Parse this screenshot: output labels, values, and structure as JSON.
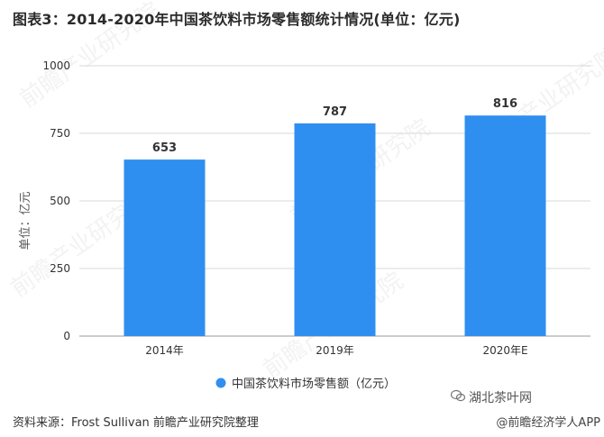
{
  "title": "图表3：2014-2020年中国茶饮料市场零售额统计情况(单位：亿元)",
  "source": "资料来源：Frost Sullivan 前瞻产业研究院整理",
  "watermark": "前瞻产业研究院",
  "wechat_badge": "湖北茶叶网",
  "footer_logo": "@前瞻经济学人APP",
  "colors": {
    "bar": "#2f8ff0",
    "grid": "#d9d9d9",
    "axis": "#333333"
  },
  "chart_data": {
    "type": "bar",
    "categories": [
      "2014年",
      "2019年",
      "2020年E"
    ],
    "series": [
      {
        "name": "中国茶饮料市场零售额（亿元）",
        "values": [
          653,
          787,
          816
        ]
      }
    ],
    "ylabel": "单位：亿元",
    "xlabel": "",
    "ylim": [
      0,
      1000
    ],
    "yticks": [
      0,
      250,
      500,
      750,
      1000
    ],
    "grid": true,
    "legend": "bottom-center"
  }
}
